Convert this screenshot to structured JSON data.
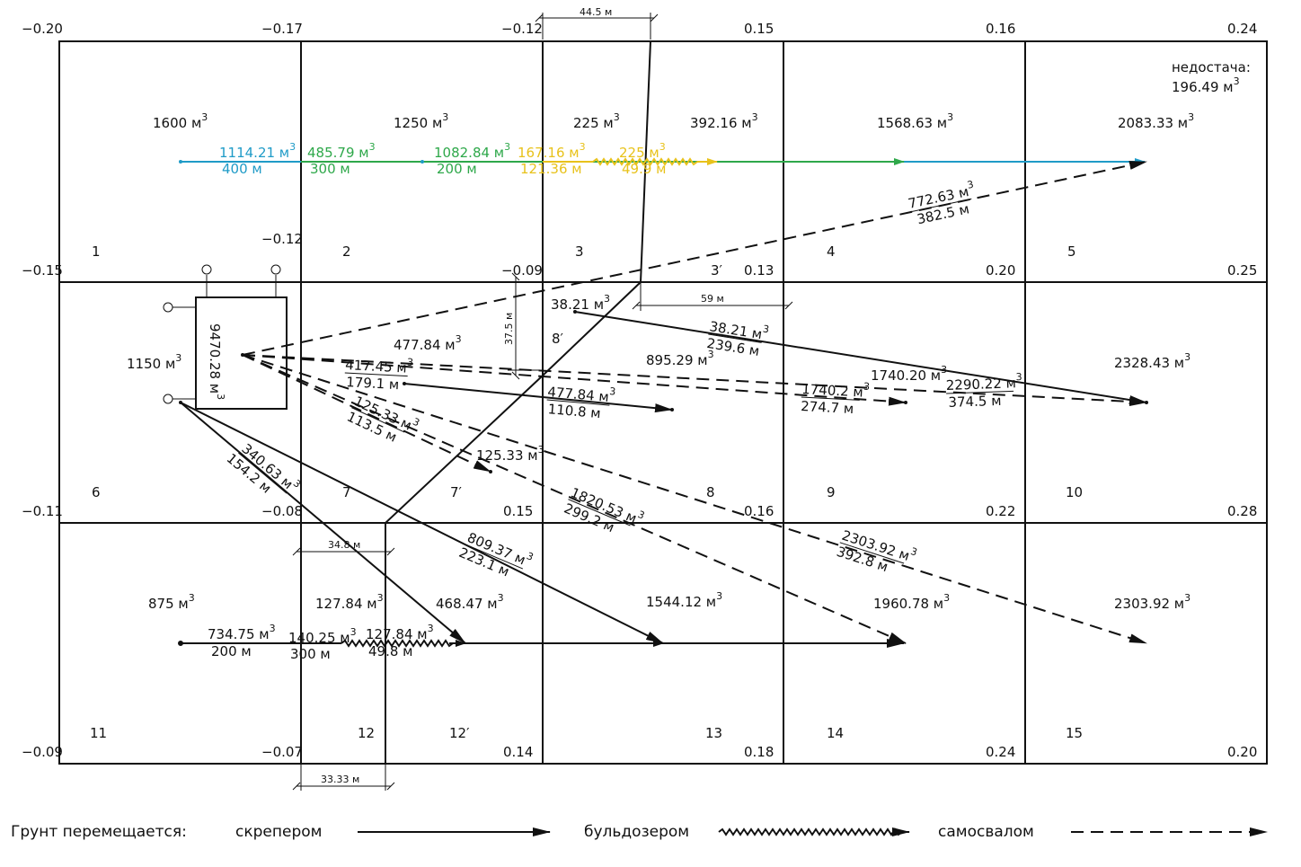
{
  "corner_marks": [
    {
      "id": "r0c0",
      "text": "−0.20"
    },
    {
      "id": "r0c1",
      "text": "−0.17"
    },
    {
      "id": "r0c2",
      "text": "−0.12"
    },
    {
      "id": "r0c3",
      "text": "0.15"
    },
    {
      "id": "r0c4",
      "text": "0.16"
    },
    {
      "id": "r0c5",
      "text": "0.24"
    },
    {
      "id": "r1c0",
      "text": "−0.15"
    },
    {
      "id": "r1c1",
      "text": "−0.12"
    },
    {
      "id": "r1c2",
      "text": "−0.09"
    },
    {
      "id": "r1c3",
      "text": "0.13"
    },
    {
      "id": "r1c4",
      "text": "0.20"
    },
    {
      "id": "r1c5",
      "text": "0.25"
    },
    {
      "id": "r2c0",
      "text": "−0.11"
    },
    {
      "id": "r2c1",
      "text": "−0.08"
    },
    {
      "id": "r2c2",
      "text": "0.15"
    },
    {
      "id": "r2c3",
      "text": "0.16"
    },
    {
      "id": "r2c4",
      "text": "0.22"
    },
    {
      "id": "r2c5",
      "text": "0.28"
    },
    {
      "id": "r3c0",
      "text": "−0.09"
    },
    {
      "id": "r3c1",
      "text": "−0.07"
    },
    {
      "id": "r3c2",
      "text": "0.14"
    },
    {
      "id": "r3c3",
      "text": "0.18"
    },
    {
      "id": "r3c4",
      "text": "0.24"
    },
    {
      "id": "r3c5",
      "text": "0.20"
    }
  ],
  "cell_numbers": [
    "1",
    "2",
    "3",
    "3′",
    "4",
    "5",
    "6",
    "7",
    "7′",
    "8′",
    "8",
    "9",
    "10",
    "11",
    "12",
    "12′",
    "13",
    "14",
    "15"
  ],
  "volumes": {
    "v1": "1600 м",
    "v2": "1250 м",
    "v3": "225 м",
    "v3p": "392.16 м",
    "v4": "1568.63 м",
    "v5": "2083.33 м",
    "v6": "1150 м",
    "v7": "477.84 м",
    "v8p": "38.21 м",
    "v8": "895.29 м",
    "v9": "1740.20 м",
    "v10": "2328.43 м",
    "v11": "875 м",
    "v12": "127.84 м",
    "v12p": "468.47 м",
    "v13": "1544.12 м",
    "v14": "1960.78 м",
    "v15": "2303.92 м",
    "reserve": "9470.28 м"
  },
  "shortage": {
    "label": "недостача:",
    "value": "196.49 м"
  },
  "row1_flows": [
    {
      "id": "f1",
      "vol": "1114.21 м",
      "dist": "400 м",
      "color": "#1f9bc7"
    },
    {
      "id": "f2",
      "vol": "485.79 м",
      "dist": "300 м",
      "color": "#2ea84a"
    },
    {
      "id": "f3",
      "vol": "1082.84 м",
      "dist": "200 м",
      "color": "#2ea84a"
    },
    {
      "id": "f4",
      "vol": "167.16 м",
      "dist": "121.36 м",
      "color": "#e8c21b"
    },
    {
      "id": "f5",
      "vol": "225 м",
      "dist": "49.9 м",
      "color": "#e8c21b"
    }
  ],
  "row3_flows": [
    {
      "id": "g1",
      "vol": "734.75 м",
      "dist": "200 м"
    },
    {
      "id": "g2",
      "vol": "140.25 м",
      "dist": "300 м"
    },
    {
      "id": "g3",
      "vol": "127.84 м",
      "dist": "49.8 м"
    }
  ],
  "arrow_labels": [
    {
      "id": "a1",
      "vol": "772.63 м",
      "dist": "382.5 м"
    },
    {
      "id": "a2",
      "vol": "38.21 м",
      "dist": "239.6 м"
    },
    {
      "id": "a3",
      "vol": "417.45 м",
      "dist": "179.1 м"
    },
    {
      "id": "a4",
      "vol": "477.84 м",
      "dist": "110.8 м"
    },
    {
      "id": "a5",
      "vol": "1740.2 м",
      "dist": "274.7 м"
    },
    {
      "id": "a6",
      "vol": "2290.22 м",
      "dist": "374.5 м"
    },
    {
      "id": "a7",
      "vol": "125.33 м",
      "dist": "113.5 м"
    },
    {
      "id": "a7v",
      "vol": "125.33 м"
    },
    {
      "id": "a8",
      "vol": "1820.53 м",
      "dist": "299.2 м"
    },
    {
      "id": "a9",
      "vol": "340.63 м",
      "dist": "154.2 м"
    },
    {
      "id": "a10",
      "vol": "809.37 м",
      "dist": "223.1 м"
    },
    {
      "id": "a11",
      "vol": "2303.92 м",
      "dist": "392.8 м"
    }
  ],
  "dims": {
    "d1": "44.5 м",
    "d2": "59 м",
    "d3": "37.5 м",
    "d4": "34.8 м",
    "d5": "33.33 м"
  },
  "legend": {
    "title": "Грунт перемещается:",
    "scraper": "скрепером",
    "bulldozer": "бульдозером",
    "truck": "самосвалом"
  },
  "colors": {
    "line": "#111111",
    "cyan": "#1f9bc7",
    "green": "#2ea84a",
    "yellow": "#e8c21b"
  }
}
